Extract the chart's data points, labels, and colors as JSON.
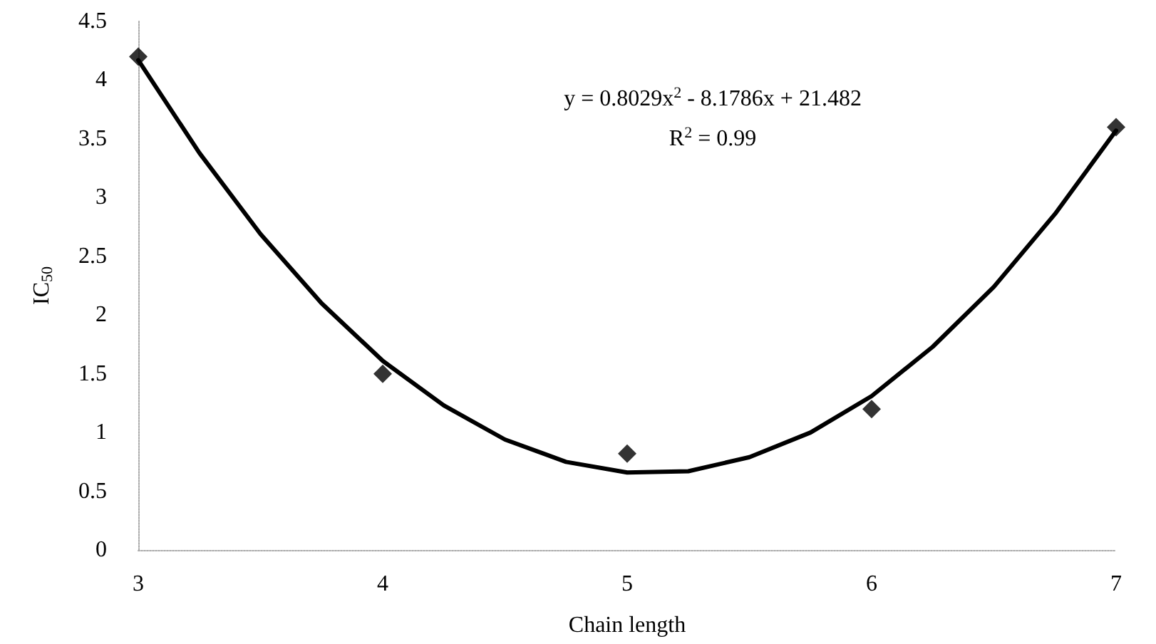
{
  "chart_data": {
    "type": "scatter",
    "xlabel": "Chain length",
    "ylabel": "IC$_{50}$",
    "xlim": [
      3,
      7
    ],
    "xticks": [
      3,
      4,
      5,
      6,
      7
    ],
    "ylim": [
      0,
      4.5
    ],
    "yticks": [
      0,
      0.5,
      1,
      1.5,
      2,
      2.5,
      3,
      3.5,
      4,
      4.5
    ],
    "grid": false,
    "marker": "diamond",
    "series": [
      {
        "color": "#000000",
        "x": [
          3,
          4,
          5,
          6,
          7
        ],
        "values": [
          4.2,
          1.5,
          0.82,
          1.2,
          3.6
        ]
      },
      {
        "type": "line",
        "color": "#000000",
        "marker": "none",
        "line_style": "solid",
        "x": [
          3,
          3.25,
          3.5,
          3.75,
          4,
          4.25,
          4.5,
          4.75,
          5,
          5.25,
          5.5,
          5.75,
          6,
          6.25,
          6.5,
          6.75,
          7
        ],
        "values": [
          4.17,
          3.38,
          2.69,
          2.1,
          1.61,
          1.23,
          0.94,
          0.75,
          0.66,
          0.67,
          0.79,
          1.0,
          1.31,
          1.73,
          2.24,
          2.86,
          3.57
        ]
      }
    ],
    "annotations": [
      "y = 0.8029x$^{2}$ - 8.1786x + 21.482",
      "R$^{2}$ = 0.99"
    ]
  }
}
